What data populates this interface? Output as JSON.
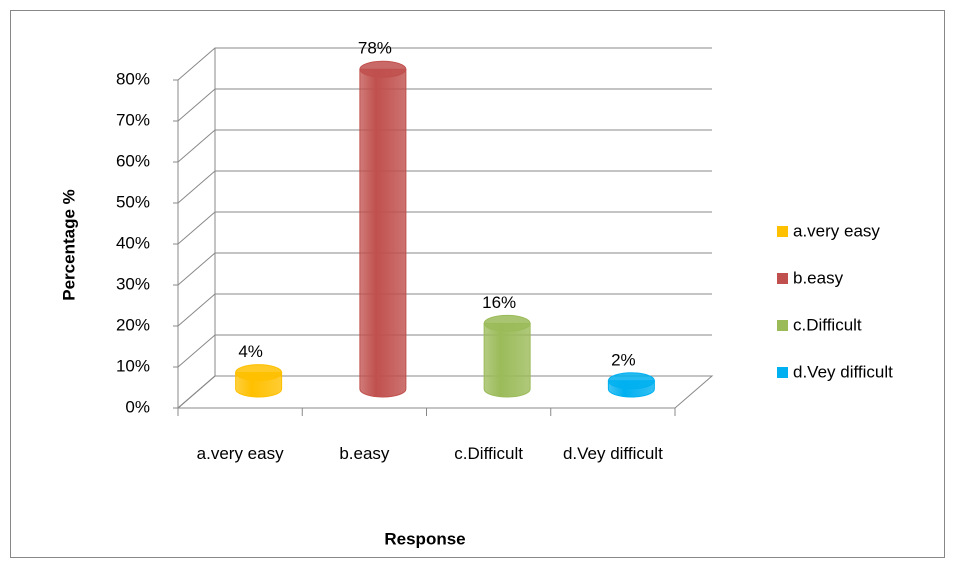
{
  "chart_data": {
    "type": "bar3d",
    "categories": [
      "a.very easy",
      "b.easy",
      "c.Difficult",
      "d.Vey difficult"
    ],
    "series": [
      {
        "name": "a.very easy",
        "color": "#FFC000"
      },
      {
        "name": "b.easy",
        "color": "#C0504D"
      },
      {
        "name": "c.Difficult",
        "color": "#9BBB59"
      },
      {
        "name": "d.Vey difficult",
        "color": "#00B0F0"
      }
    ],
    "values": [
      4,
      78,
      16,
      2
    ],
    "value_labels": [
      "4%",
      "78%",
      "16%",
      "2%"
    ],
    "ylim": [
      0,
      80
    ],
    "yticks": [
      {
        "value": 0,
        "label": "0%"
      },
      {
        "value": 10,
        "label": "10%"
      },
      {
        "value": 20,
        "label": "20%"
      },
      {
        "value": 30,
        "label": "30%"
      },
      {
        "value": 40,
        "label": "40%"
      },
      {
        "value": 50,
        "label": "50%"
      },
      {
        "value": 60,
        "label": "60%"
      },
      {
        "value": 70,
        "label": "70%"
      },
      {
        "value": 80,
        "label": "80%"
      }
    ],
    "y_label": "Percentage %",
    "x_label": "Response",
    "grid": true,
    "legend": "right"
  }
}
